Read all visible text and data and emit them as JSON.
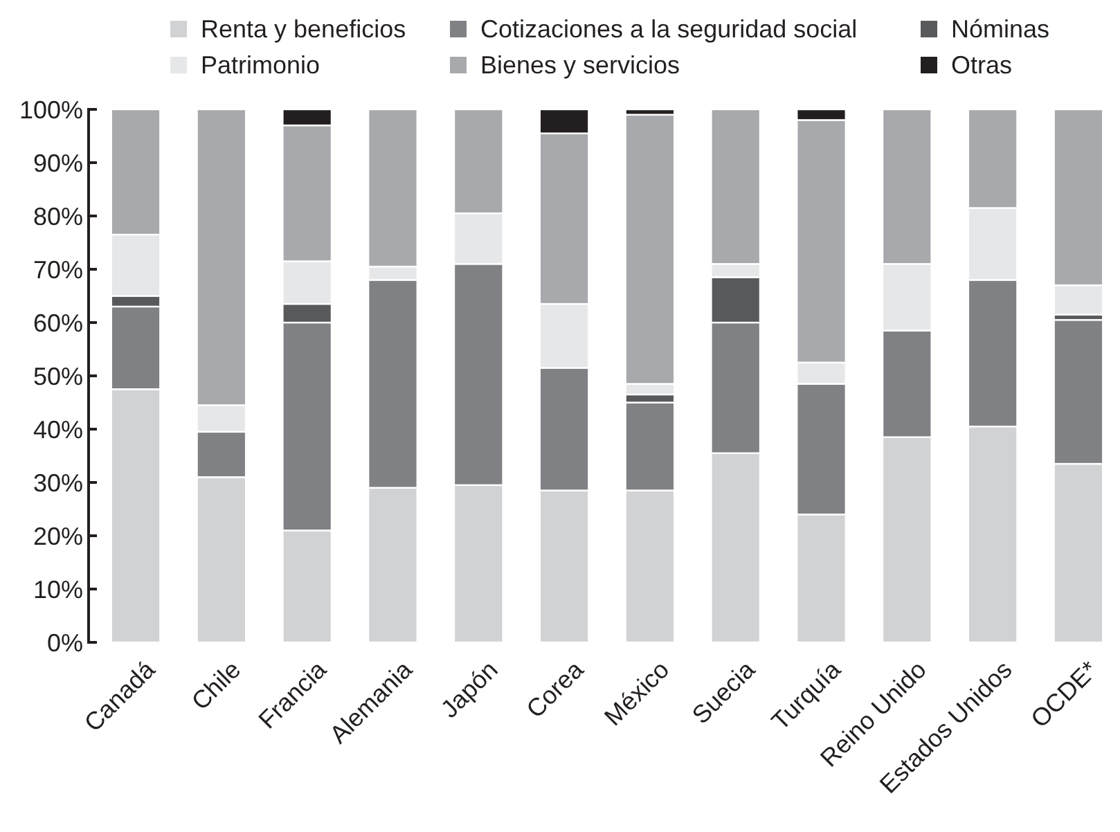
{
  "chart_data": {
    "type": "bar",
    "stacked": true,
    "legend": "top",
    "categories": [
      "Canadá",
      "Chile",
      "Francia",
      "Alemania",
      "Japón",
      "Corea",
      "México",
      "Suecia",
      "Turquía",
      "Reino Unido",
      "Estados Unidos",
      "OCDE*"
    ],
    "series": [
      {
        "name": "Renta y beneficios",
        "color": "#d1d2d4",
        "values": [
          47.5,
          31,
          21,
          29,
          29.5,
          28.5,
          28.5,
          35.5,
          24,
          38.5,
          40.5,
          33.5
        ]
      },
      {
        "name": "Cotizaciones a la seguridad social",
        "color": "#808184",
        "values": [
          15.5,
          8.5,
          39,
          39,
          41.5,
          23,
          16.5,
          24.5,
          24.5,
          20,
          27.5,
          27
        ]
      },
      {
        "name": "Nóminas",
        "color": "#58595b",
        "values": [
          2,
          0,
          3.5,
          0,
          0,
          0,
          1.5,
          8.5,
          0,
          0,
          0,
          1
        ]
      },
      {
        "name": "Patrimonio",
        "color": "#e6e7e8",
        "values": [
          11.5,
          5,
          8,
          2.5,
          9.5,
          12,
          2,
          2.5,
          4,
          12.5,
          13.5,
          5.5
        ]
      },
      {
        "name": "Bienes y servicios",
        "color": "#a7a9ac",
        "values": [
          23.5,
          55.5,
          25.5,
          29.5,
          19.5,
          32,
          50.5,
          29,
          45.5,
          29,
          18.5,
          33
        ]
      },
      {
        "name": "Otras",
        "color": "#231f20",
        "values": [
          0,
          0,
          3,
          0,
          0,
          4.5,
          1,
          0,
          2,
          0,
          0,
          0
        ]
      }
    ],
    "ylim": [
      0,
      100
    ],
    "yticks": [
      {
        "value": 0,
        "label": "0%"
      },
      {
        "value": 10,
        "label": "10%"
      },
      {
        "value": 20,
        "label": "20%"
      },
      {
        "value": 30,
        "label": "30%"
      },
      {
        "value": 40,
        "label": "40%"
      },
      {
        "value": 50,
        "label": "50%"
      },
      {
        "value": 60,
        "label": "60%"
      },
      {
        "value": 70,
        "label": "70%"
      },
      {
        "value": 80,
        "label": "80%"
      },
      {
        "value": 90,
        "label": "90%"
      },
      {
        "value": 100,
        "label": "100%"
      }
    ]
  }
}
